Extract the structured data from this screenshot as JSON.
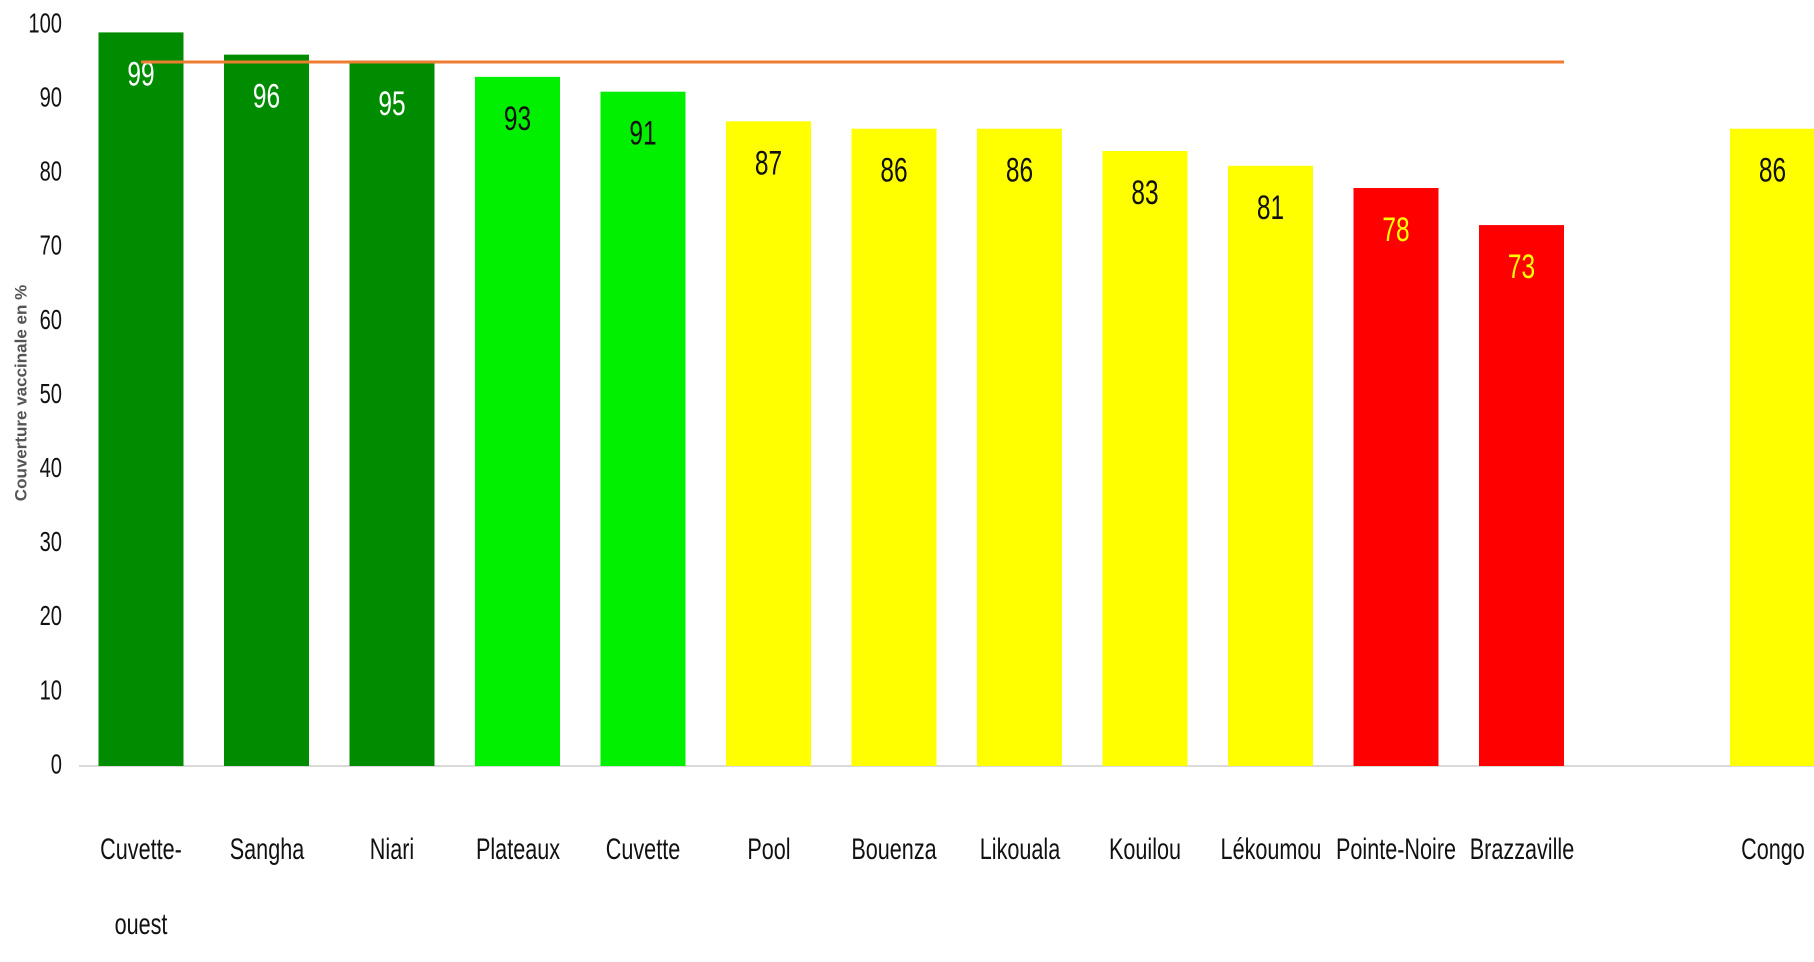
{
  "chart_data": {
    "type": "bar",
    "y_label": "Couverture vaccinale en %",
    "categories": [
      "Cuvette-ouest",
      "Sangha",
      "Niari",
      "Plateaux",
      "Cuvette",
      "Pool",
      "Bouenza",
      "Likouala",
      "Kouilou",
      "Lékoumou",
      "Pointe-Noire",
      "Brazzaville",
      null,
      "Congo"
    ],
    "values": [
      99,
      96,
      95,
      93,
      91,
      87,
      86,
      86,
      83,
      81,
      78,
      73,
      null,
      86
    ],
    "colors": [
      "#008c00",
      "#008c00",
      "#008c00",
      "#00f000",
      "#00f000",
      "#ffff00",
      "#ffff00",
      "#ffff00",
      "#ffff00",
      "#ffff00",
      "#ff0000",
      "#ff0000",
      null,
      "#ffff00"
    ],
    "value_label_colors": [
      "#ffffff",
      "#ffffff",
      "#ffffff",
      "#111111",
      "#111111",
      "#111111",
      "#111111",
      "#111111",
      "#111111",
      "#111111",
      "#ffff00",
      "#ffff00",
      null,
      "#111111"
    ],
    "reference_line": {
      "value": 95,
      "color": "#ed7d31"
    },
    "ylim": [
      0,
      100
    ],
    "yticks": [
      0,
      10,
      20,
      30,
      40,
      50,
      60,
      70,
      80,
      90,
      100
    ],
    "grid": false
  }
}
